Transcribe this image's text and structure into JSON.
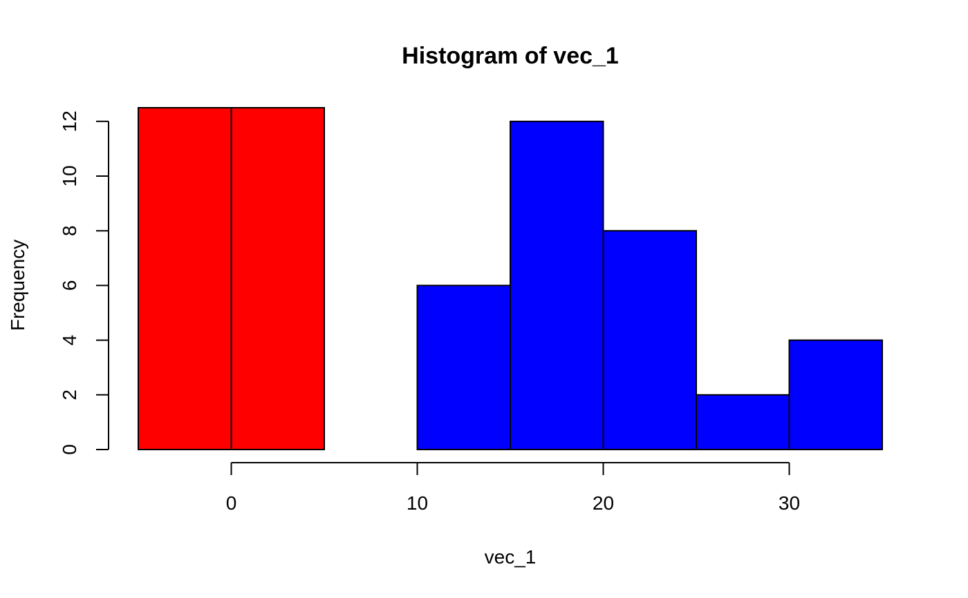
{
  "chart_data": {
    "type": "bar",
    "title": "Histogram of vec_1",
    "xlabel": "vec_1",
    "ylabel": "Frequency",
    "xlim": [
      -5,
      35
    ],
    "ylim": [
      0,
      12.5
    ],
    "x_ticks": [
      0,
      10,
      20,
      30
    ],
    "y_ticks": [
      0,
      2,
      4,
      6,
      8,
      10,
      12
    ],
    "grid": false,
    "bins": [
      {
        "from": -5,
        "to": 0,
        "count": 12.5,
        "color": "#ff0000"
      },
      {
        "from": 0,
        "to": 5,
        "count": 12.5,
        "color": "#ff0000"
      },
      {
        "from": 5,
        "to": 10,
        "count": 0,
        "color": "#0000ff"
      },
      {
        "from": 10,
        "to": 15,
        "count": 6,
        "color": "#0000ff"
      },
      {
        "from": 15,
        "to": 20,
        "count": 12,
        "color": "#0000ff"
      },
      {
        "from": 20,
        "to": 25,
        "count": 8,
        "color": "#0000ff"
      },
      {
        "from": 25,
        "to": 30,
        "count": 2,
        "color": "#0000ff"
      },
      {
        "from": 30,
        "to": 35,
        "count": 4,
        "color": "#0000ff"
      }
    ]
  }
}
